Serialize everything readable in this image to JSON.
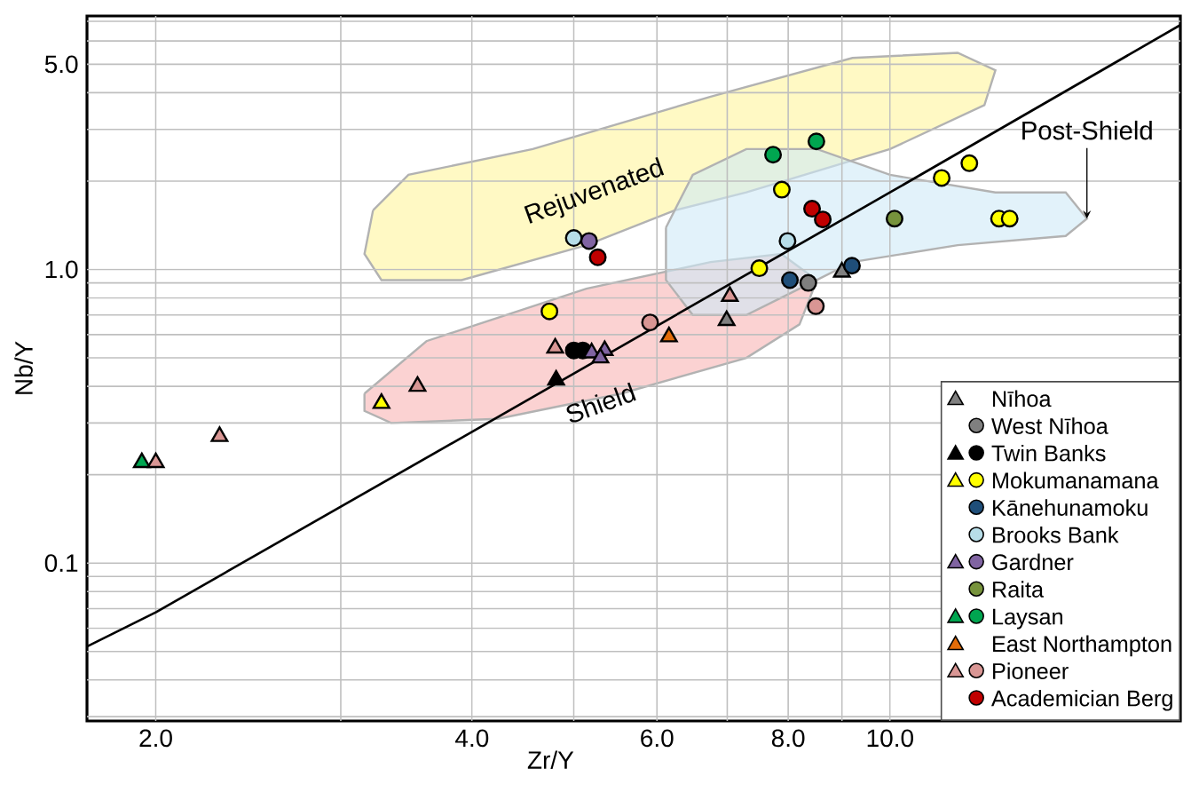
{
  "chart_data": {
    "type": "scatter",
    "xlabel": "Zr/Y",
    "ylabel": "Nb/Y",
    "log": "xy",
    "grid": true,
    "legend": "bottom right",
    "xlim": [
      1.72,
      18.9
    ],
    "ylim": [
      0.029,
      7.3
    ],
    "xticks": [
      {
        "value": 2,
        "label": "2.0"
      },
      {
        "value": 4,
        "label": "4.0"
      },
      {
        "value": 6,
        "label": "6.0"
      },
      {
        "value": 8,
        "label": "8.0"
      },
      {
        "value": 10,
        "label": "10.0"
      }
    ],
    "yticks": [
      {
        "value": 0.1,
        "label": "0.1"
      },
      {
        "value": 1,
        "label": "1.0"
      },
      {
        "value": 5,
        "label": "5.0"
      }
    ],
    "series": [
      {
        "type": "area",
        "name": "Rejuvenated",
        "color": "#fff59d",
        "x": [
          3.22,
          3.48,
          4.57,
          6.75,
          9.21,
          11.6,
          12.6,
          12.3,
          10.0,
          7.3,
          6.24,
          5.14,
          3.91,
          3.28,
          3.16
        ],
        "values": [
          1.59,
          2.1,
          2.57,
          3.88,
          5.25,
          5.47,
          4.77,
          3.63,
          2.57,
          1.83,
          1.59,
          1.21,
          0.92,
          0.92,
          1.13
        ]
      },
      {
        "type": "area",
        "name": "Shield",
        "color": "#f8b4b4",
        "x": [
          3.16,
          3.62,
          5.14,
          6.75,
          7.88,
          8.52,
          8.2,
          7.3,
          5.55,
          4.23,
          3.35,
          3.16
        ],
        "values": [
          0.378,
          0.57,
          0.86,
          1.06,
          1.13,
          0.92,
          0.65,
          0.5,
          0.378,
          0.31,
          0.3,
          0.33
        ]
      },
      {
        "type": "area",
        "name": "Post-Shield",
        "color": "#cfe9f7",
        "x": [
          6.12,
          6.49,
          7.3,
          8.52,
          10.0,
          12.6,
          14.7,
          15.4,
          14.7,
          11.6,
          9.21,
          8.2,
          7.3,
          6.49,
          6.12
        ],
        "values": [
          1.39,
          2.1,
          2.57,
          2.57,
          2.1,
          1.83,
          1.83,
          1.49,
          1.3,
          1.21,
          1.06,
          0.86,
          0.7,
          0.7,
          0.92
        ]
      },
      {
        "type": "line",
        "color": "#000000",
        "line_style": "solid",
        "x": [
          1.72,
          2.0,
          4.0,
          10.0,
          18.9
        ],
        "values": [
          0.052,
          0.068,
          0.28,
          1.83,
          6.8
        ]
      },
      {
        "name": "Nīhoa",
        "color": "#808080",
        "marker": "triangle",
        "x": [
          9.0,
          6.99
        ],
        "values": [
          0.98,
          0.67
        ]
      },
      {
        "name": "West Nīhoa",
        "color": "#7f7f7f",
        "marker": "circle",
        "x": [
          8.36
        ],
        "values": [
          0.9
        ]
      },
      {
        "name": "Twin Banks",
        "color": "#000000",
        "marker": "triangle",
        "x": [
          4.81
        ],
        "values": [
          0.42
        ]
      },
      {
        "color": "#000000",
        "marker": "circle",
        "x": [
          5.0,
          5.1
        ],
        "values": [
          0.53,
          0.53
        ]
      },
      {
        "name": "Mokumanamana",
        "color": "#ffff00",
        "marker": "triangle",
        "x": [
          3.28
        ],
        "values": [
          0.35
        ]
      },
      {
        "color": "#ffff00",
        "marker": "circle",
        "x": [
          4.74,
          7.89,
          11.2,
          11.9,
          12.7,
          13.0,
          7.51
        ],
        "values": [
          0.72,
          1.87,
          2.05,
          2.3,
          1.49,
          1.49,
          1.01
        ]
      },
      {
        "name": "Kānehunamoku",
        "color": "#1f4e79",
        "marker": "circle",
        "x": [
          8.03,
          9.2
        ],
        "values": [
          0.92,
          1.03
        ]
      },
      {
        "name": "Brooks Bank",
        "color": "#b7dde8",
        "marker": "circle",
        "x": [
          5.0,
          7.99
        ],
        "values": [
          1.28,
          1.25
        ]
      },
      {
        "name": "Gardner",
        "color": "#8064a2",
        "marker": "triangle",
        "x": [
          5.2,
          5.35,
          5.3
        ],
        "values": [
          0.52,
          0.53,
          0.5
        ]
      },
      {
        "color": "#8064a2",
        "marker": "circle",
        "x": [
          5.17
        ],
        "values": [
          1.25
        ]
      },
      {
        "name": "Raita",
        "color": "#77933c",
        "marker": "circle",
        "x": [
          10.1
        ],
        "values": [
          1.49
        ]
      },
      {
        "name": "Laysan",
        "color": "#00a550",
        "marker": "triangle",
        "x": [
          1.94
        ],
        "values": [
          0.22
        ]
      },
      {
        "color": "#00a550",
        "marker": "circle",
        "x": [
          7.74,
          8.51
        ],
        "values": [
          2.46,
          2.73
        ]
      },
      {
        "name": "East Northampton",
        "color": "#e36c09",
        "marker": "triangle",
        "x": [
          6.16
        ],
        "values": [
          0.59
        ]
      },
      {
        "name": "Pioneer",
        "color": "#d99694",
        "marker": "triangle",
        "x": [
          2.0,
          2.3,
          3.55,
          4.8,
          7.04
        ],
        "values": [
          0.22,
          0.27,
          0.4,
          0.54,
          0.81
        ]
      },
      {
        "color": "#d99694",
        "marker": "circle",
        "x": [
          5.91,
          8.5
        ],
        "values": [
          0.66,
          0.75
        ]
      },
      {
        "name": "Academician Berg",
        "color": "#c00000",
        "marker": "circle",
        "x": [
          5.27,
          8.43,
          8.63
        ],
        "values": [
          1.1,
          1.61,
          1.48
        ]
      }
    ]
  }
}
